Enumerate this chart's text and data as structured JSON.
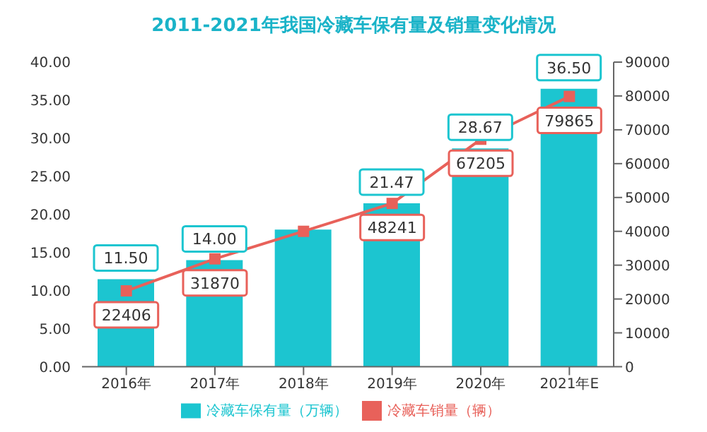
{
  "chart_data": {
    "type": "bar",
    "title": "2011-2021年我国冷藏车保有量及销量变化情况",
    "categories": [
      "2016年",
      "2017年",
      "2018年",
      "2019年",
      "2020年",
      "2021年E"
    ],
    "series": [
      {
        "name": "冷藏车保有量（万辆）",
        "color": "#1cc5d0",
        "values": [
          11.5,
          14.0,
          18.0,
          21.47,
          28.67,
          36.5
        ],
        "value_labels": [
          "11.50",
          "14.00",
          null,
          "21.47",
          "28.67",
          "36.50"
        ]
      },
      {
        "name": "冷藏车销量（辆）",
        "type": "line",
        "axis": "y2",
        "color": "#e8615a",
        "values": [
          22406,
          31870,
          40000,
          48241,
          67205,
          79865
        ],
        "value_labels": [
          "22406",
          "31870",
          null,
          "48241",
          "67205",
          "79865"
        ]
      }
    ],
    "ylim": [
      0,
      40
    ],
    "yticks": [
      {
        "value": 0,
        "label": "0.00"
      },
      {
        "value": 5,
        "label": "5.00"
      },
      {
        "value": 10,
        "label": "10.00"
      },
      {
        "value": 15,
        "label": "15.00"
      },
      {
        "value": 20,
        "label": "20.00"
      },
      {
        "value": 25,
        "label": "25.00"
      },
      {
        "value": 30,
        "label": "30.00"
      },
      {
        "value": 35,
        "label": "35.00"
      },
      {
        "value": 40,
        "label": "40.00"
      }
    ],
    "y2lim": [
      0,
      90000
    ],
    "y2ticks": [
      0,
      10000,
      20000,
      30000,
      40000,
      50000,
      60000,
      70000,
      80000,
      90000
    ],
    "legend": "bottom",
    "marker": "square"
  }
}
